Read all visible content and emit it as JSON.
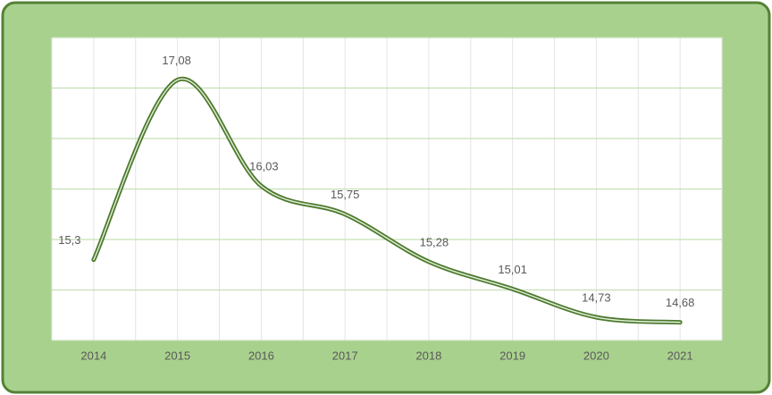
{
  "chart_data": {
    "type": "line",
    "categories": [
      "2014",
      "2015",
      "2016",
      "2017",
      "2018",
      "2019",
      "2020",
      "2021"
    ],
    "series": [
      {
        "color": "#4e7a2f",
        "values": [
          15.3,
          17.08,
          16.03,
          15.75,
          15.28,
          15.01,
          14.73,
          14.68
        ],
        "value_labels": [
          "15,3",
          "17,08",
          "16,03",
          "15,75",
          "15,28",
          "15,01",
          "14,73",
          "14,68"
        ]
      }
    ],
    "ylim": [
      14.5,
      17.5
    ],
    "yticks": [
      14.5,
      15,
      15.5,
      16,
      16.5,
      17,
      17.5
    ],
    "grid": true
  }
}
